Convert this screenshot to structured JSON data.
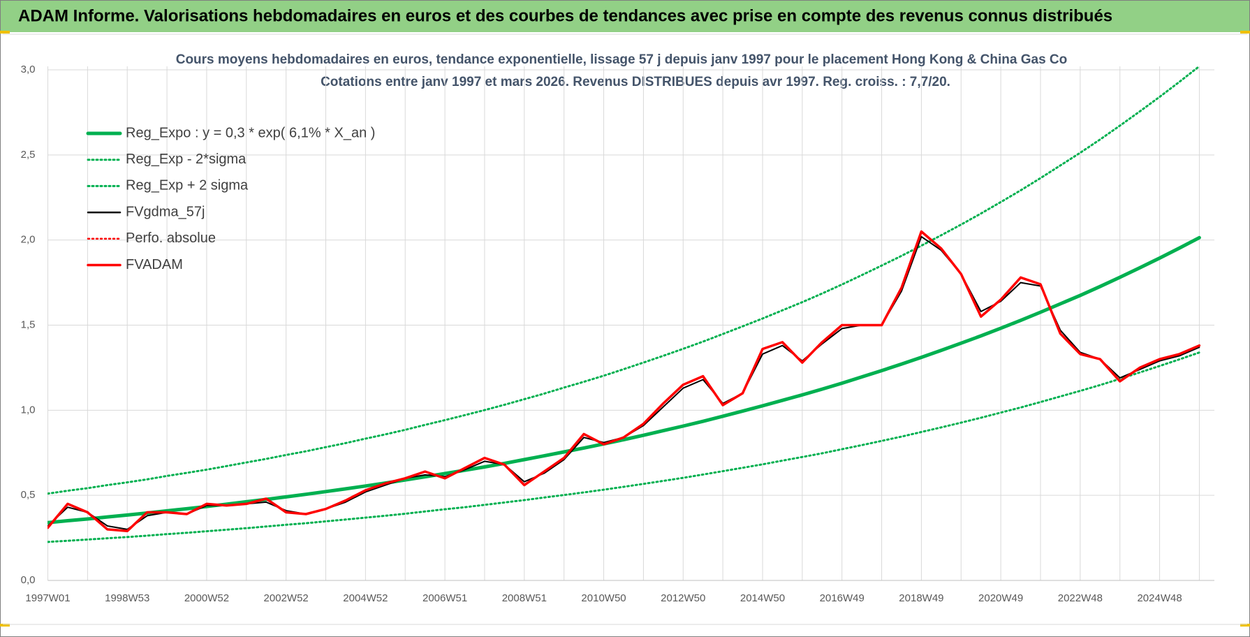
{
  "header": {
    "title": "ADAM Informe. Valorisations hebdomadaires en euros et des courbes de tendances avec prise en compte des revenus connus distribués"
  },
  "chart_data": {
    "type": "line",
    "title": "Cours moyens hebdomadaires en euros, tendance exponentielle, lissage 57 j depuis janv 1997  pour le placement Hong Kong & China Gas Co",
    "subtitle": "Cotations entre janv 1997 et mars 2026. Revenus DISTRIBUES depuis avr 1997. Reg. croiss. : 7,7/20.",
    "categories": [
      "1997W01",
      null,
      null,
      null,
      "1998W53",
      null,
      null,
      null,
      "2000W52",
      null,
      null,
      null,
      "2002W52",
      null,
      null,
      null,
      "2004W52",
      null,
      null,
      null,
      "2006W51",
      null,
      null,
      null,
      "2008W51",
      null,
      null,
      null,
      "2010W50",
      null,
      null,
      null,
      "2012W50",
      null,
      null,
      null,
      "2014W50",
      null,
      null,
      null,
      "2016W49",
      null,
      null,
      null,
      "2018W49",
      null,
      null,
      null,
      "2020W49",
      null,
      null,
      null,
      "2022W48",
      null,
      null,
      null,
      "2024W48",
      null,
      null
    ],
    "ylim": [
      0,
      3
    ],
    "yticks": [
      {
        "value": 0,
        "label": "0,0"
      },
      {
        "value": 0.5,
        "label": "0,5"
      },
      {
        "value": 1,
        "label": "1,0"
      },
      {
        "value": 1.5,
        "label": "1,5"
      },
      {
        "value": 2,
        "label": "2,0"
      },
      {
        "value": 2.5,
        "label": "2,5"
      },
      {
        "value": 3,
        "label": "3,0"
      }
    ],
    "grid": true,
    "legend": "top-left",
    "series": [
      {
        "name": "Reg_Expo : y = 0,3 * exp( 6,1% *  X_an )",
        "color": "#00b050",
        "style": "solid",
        "width": 5,
        "values": [
          0.34,
          0.351,
          0.361,
          0.373,
          0.384,
          0.396,
          0.409,
          0.421,
          0.434,
          0.448,
          0.462,
          0.476,
          0.491,
          0.506,
          0.522,
          0.538,
          0.555,
          0.572,
          0.59,
          0.609,
          0.628,
          0.647,
          0.667,
          0.688,
          0.71,
          0.732,
          0.755,
          0.778,
          0.802,
          0.827,
          0.853,
          0.88,
          0.907,
          0.935,
          0.965,
          0.995,
          1.026,
          1.058,
          1.09,
          1.124,
          1.159,
          1.196,
          1.233,
          1.271,
          1.311,
          1.352,
          1.394,
          1.437,
          1.482,
          1.528,
          1.576,
          1.625,
          1.675,
          1.727,
          1.781,
          1.837,
          1.894,
          1.953,
          2.014
        ]
      },
      {
        "name": "Reg_Exp - 2*sigma",
        "color": "#00b050",
        "style": "dotted",
        "width": 3,
        "values": [
          0.226,
          0.233,
          0.24,
          0.248,
          0.255,
          0.263,
          0.272,
          0.28,
          0.289,
          0.298,
          0.307,
          0.317,
          0.327,
          0.336,
          0.347,
          0.358,
          0.369,
          0.38,
          0.392,
          0.405,
          0.418,
          0.43,
          0.444,
          0.458,
          0.472,
          0.487,
          0.502,
          0.517,
          0.533,
          0.55,
          0.567,
          0.585,
          0.603,
          0.622,
          0.642,
          0.662,
          0.682,
          0.704,
          0.725,
          0.747,
          0.771,
          0.795,
          0.82,
          0.845,
          0.872,
          0.899,
          0.927,
          0.956,
          0.986,
          1.016,
          1.048,
          1.081,
          1.114,
          1.148,
          1.184,
          1.222,
          1.26,
          1.299,
          1.339
        ]
      },
      {
        "name": "Reg_Exp + 2 sigma",
        "color": "#00b050",
        "style": "dotted",
        "width": 3,
        "values": [
          0.51,
          0.527,
          0.542,
          0.56,
          0.576,
          0.594,
          0.614,
          0.632,
          0.651,
          0.672,
          0.693,
          0.714,
          0.737,
          0.759,
          0.783,
          0.807,
          0.833,
          0.858,
          0.885,
          0.914,
          0.942,
          0.971,
          1.001,
          1.032,
          1.065,
          1.098,
          1.133,
          1.167,
          1.203,
          1.241,
          1.28,
          1.32,
          1.361,
          1.403,
          1.448,
          1.493,
          1.539,
          1.587,
          1.635,
          1.686,
          1.739,
          1.794,
          1.85,
          1.907,
          1.967,
          2.028,
          2.091,
          2.156,
          2.223,
          2.292,
          2.364,
          2.438,
          2.513,
          2.591,
          2.672,
          2.756,
          2.841,
          2.93,
          3.021
        ]
      },
      {
        "name": "FVgdma_57j",
        "color": "#000000",
        "style": "solid",
        "width": 2,
        "values": [
          0.32,
          0.43,
          0.4,
          0.32,
          0.3,
          0.38,
          0.4,
          0.39,
          0.44,
          0.44,
          0.45,
          0.46,
          0.41,
          0.39,
          0.42,
          0.46,
          0.52,
          0.56,
          0.6,
          0.62,
          0.61,
          0.65,
          0.7,
          0.68,
          0.58,
          0.63,
          0.71,
          0.84,
          0.81,
          0.84,
          0.91,
          1.02,
          1.13,
          1.18,
          1.04,
          1.1,
          1.33,
          1.38,
          1.29,
          1.39,
          1.48,
          1.5,
          1.5,
          1.7,
          2.02,
          1.94,
          1.8,
          1.58,
          1.64,
          1.75,
          1.73,
          1.47,
          1.34,
          1.3,
          1.19,
          1.24,
          1.29,
          1.32,
          1.37
        ]
      },
      {
        "name": "Perfo. absolue",
        "color": "#ff0000",
        "style": "dotted",
        "width": 2,
        "values": [
          null,
          null,
          null,
          null,
          null,
          null,
          null,
          null,
          null,
          null,
          null,
          null,
          null,
          null,
          null,
          null,
          null,
          null,
          null,
          null,
          null,
          null,
          null,
          null,
          null,
          null,
          null,
          null,
          null,
          null,
          null,
          null,
          null,
          null,
          null,
          null,
          null,
          null,
          null,
          null,
          null,
          null,
          null,
          null,
          null,
          null,
          null,
          null,
          null,
          null,
          null,
          null,
          null,
          null,
          null,
          null,
          null,
          null,
          null
        ]
      },
      {
        "name": "FVADAM",
        "color": "#ff0000",
        "style": "solid",
        "width": 3.5,
        "values": [
          0.31,
          0.45,
          0.4,
          0.3,
          0.29,
          0.4,
          0.4,
          0.39,
          0.45,
          0.44,
          0.45,
          0.48,
          0.4,
          0.39,
          0.42,
          0.47,
          0.53,
          0.57,
          0.6,
          0.64,
          0.6,
          0.66,
          0.72,
          0.68,
          0.56,
          0.64,
          0.72,
          0.86,
          0.8,
          0.84,
          0.92,
          1.04,
          1.15,
          1.2,
          1.03,
          1.1,
          1.36,
          1.4,
          1.28,
          1.4,
          1.5,
          1.5,
          1.5,
          1.72,
          2.05,
          1.95,
          1.8,
          1.55,
          1.65,
          1.78,
          1.74,
          1.45,
          1.33,
          1.3,
          1.17,
          1.25,
          1.3,
          1.33,
          1.38
        ]
      }
    ]
  }
}
